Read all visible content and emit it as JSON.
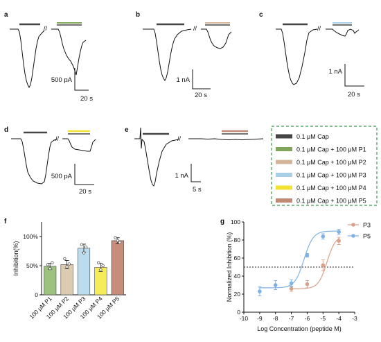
{
  "panels": {
    "a": {
      "label": "a",
      "scale_y": "500 pA",
      "scale_x": "20 s",
      "bar_color": "#7fa65a"
    },
    "b": {
      "label": "b",
      "scale_y": "1 nA",
      "scale_x": "20 s",
      "bar_color": "#d4b59a"
    },
    "c": {
      "label": "c",
      "scale_y": "1 nA",
      "scale_x": "20 s",
      "bar_color": "#a9cfe6"
    },
    "d": {
      "label": "d",
      "scale_y": "500 pA",
      "scale_x": "20 s",
      "bar_color": "#f2e233"
    },
    "e": {
      "label": "e",
      "scale_y": "1 nA",
      "scale_x": "5 s",
      "bar_color": "#c08a75"
    },
    "f": {
      "label": "f"
    },
    "g": {
      "label": "g"
    }
  },
  "legend": {
    "items": [
      {
        "label": "0.1 μM Cap",
        "color": "#444444"
      },
      {
        "label": "0.1 μM Cap + 100 μM P1",
        "color": "#7fa65a"
      },
      {
        "label": "0.1 μM Cap + 100 μM P2",
        "color": "#d4b59a"
      },
      {
        "label": "0.1 μM Cap + 100 μM P3",
        "color": "#a9cfe6"
      },
      {
        "label": "0.1 μM Cap + 100 μM P4",
        "color": "#f2e233"
      },
      {
        "label": "0.1 μM Cap + 100 μM P5",
        "color": "#c08a75"
      }
    ]
  },
  "chart_data": [
    {
      "type": "bar",
      "panel": "f",
      "categories": [
        "100 μM P1",
        "100 μM P2",
        "100 μM P3",
        "100 μM P4",
        "100 μM P5"
      ],
      "values": [
        49,
        52,
        80,
        47,
        93
      ],
      "errors": [
        5,
        7,
        7,
        7,
        5
      ],
      "points": [
        [
          52,
          45,
          55
        ],
        [
          62,
          48,
          53
        ],
        [
          86,
          72,
          82
        ],
        [
          55,
          43,
          50
        ],
        [
          98,
          93,
          90
        ]
      ],
      "colors": [
        "#9dc27f",
        "#dccab1",
        "#bbdcee",
        "#f6ec5a",
        "#c78c7a"
      ],
      "xlabel": "",
      "ylabel": "Inhibition(%)",
      "ylim": [
        0,
        125
      ],
      "yticks": [
        "0",
        "50%",
        "100%"
      ],
      "ytick_values": [
        0,
        50,
        100
      ],
      "grid": false
    },
    {
      "type": "scatter",
      "panel": "g",
      "xlabel": "Log Concentration (peptide M)",
      "ylabel": "Normalized Inhibition (%)",
      "xlim": [
        -10,
        -3
      ],
      "ylim": [
        0,
        100
      ],
      "xticks": [
        -10,
        -9,
        -8,
        -7,
        -6,
        -5,
        -4,
        -3
      ],
      "yticks": [
        0,
        20,
        40,
        60,
        80,
        100
      ],
      "reference_line_y": 50,
      "legend_position": "top-right",
      "grid": false,
      "series": [
        {
          "name": "P3",
          "color": "#d9a08a",
          "x": [
            -7,
            -6,
            -5,
            -4
          ],
          "y": [
            26,
            31,
            52,
            79
          ],
          "err": [
            3,
            4,
            6,
            4
          ],
          "fit": {
            "bottom": 26,
            "top": 85,
            "logEC50": -4.75,
            "hill": 1.6
          }
        },
        {
          "name": "P5",
          "color": "#7fb2e3",
          "x": [
            -9,
            -8,
            -7,
            -6,
            -5,
            -4
          ],
          "y": [
            23,
            30,
            32,
            63,
            84,
            89
          ],
          "err": [
            5,
            5,
            4,
            2,
            3,
            3
          ],
          "fit": {
            "bottom": 27,
            "top": 90,
            "logEC50": -6.2,
            "hill": 1.5
          }
        }
      ]
    }
  ]
}
